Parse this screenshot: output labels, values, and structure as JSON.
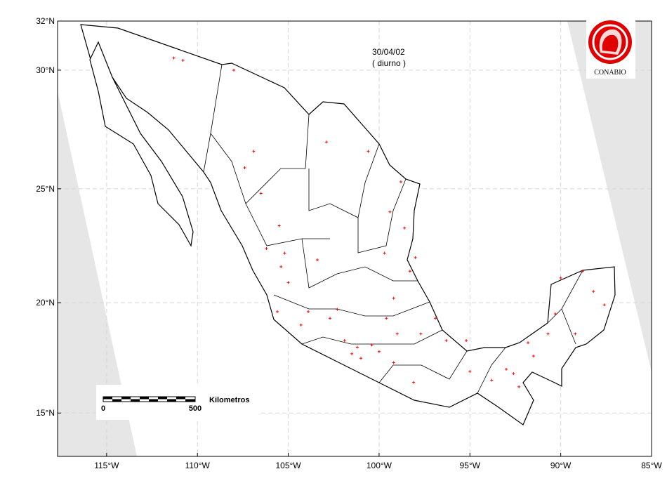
{
  "map": {
    "date": "30/04/02",
    "mode": "( diurno )",
    "logo": "CONABIO",
    "xlim": [
      -117.7,
      -85
    ],
    "ylim": [
      13,
      32
    ],
    "xticks": [
      {
        "value": -115,
        "label": "115°W"
      },
      {
        "value": -110,
        "label": "110°W"
      },
      {
        "value": -105,
        "label": "105°W"
      },
      {
        "value": -100,
        "label": "100°W"
      },
      {
        "value": -95,
        "label": "95°W"
      },
      {
        "value": -90,
        "label": "90°W"
      },
      {
        "value": -85,
        "label": "85°W"
      }
    ],
    "yticks": [
      {
        "value": 15,
        "label": "15°N"
      },
      {
        "value": 20,
        "label": "20°N"
      },
      {
        "value": 25,
        "label": "25°N"
      },
      {
        "value": 30,
        "label": "30°N"
      },
      {
        "value": 32,
        "label": "32°N"
      }
    ],
    "scale_bar": {
      "start": 0,
      "end": 500,
      "unit": "Kilometros"
    },
    "fire_color": "#ff0000",
    "fires": [
      [
        -111.3,
        30.5
      ],
      [
        -110.8,
        30.4
      ],
      [
        -108.0,
        30.0
      ],
      [
        -106.9,
        26.6
      ],
      [
        -107.4,
        25.9
      ],
      [
        -106.5,
        24.8
      ],
      [
        -105.5,
        23.4
      ],
      [
        -105.2,
        22.2
      ],
      [
        -105.0,
        20.9
      ],
      [
        -105.6,
        19.6
      ],
      [
        -103.9,
        19.6
      ],
      [
        -102.7,
        19.3
      ],
      [
        -101.9,
        18.3
      ],
      [
        -101.2,
        18.0
      ],
      [
        -101.5,
        17.7
      ],
      [
        -100.0,
        17.8
      ],
      [
        -99.2,
        17.3
      ],
      [
        -99.6,
        19.3
      ],
      [
        -99.2,
        20.2
      ],
      [
        -99.7,
        22.2
      ],
      [
        -98.6,
        23.3
      ],
      [
        -99.4,
        24.0
      ],
      [
        -98.8,
        25.3
      ],
      [
        -100.6,
        26.6
      ],
      [
        -102.9,
        27.0
      ],
      [
        -96.9,
        19.3
      ],
      [
        -97.7,
        18.6
      ],
      [
        -95.2,
        18.3
      ],
      [
        -95.0,
        16.9
      ],
      [
        -93.8,
        16.5
      ],
      [
        -93.0,
        17.0
      ],
      [
        -92.3,
        16.2
      ],
      [
        -91.5,
        17.6
      ],
      [
        -90.7,
        18.6
      ],
      [
        -90.3,
        19.5
      ],
      [
        -90.0,
        21.1
      ],
      [
        -88.8,
        21.4
      ],
      [
        -88.2,
        20.5
      ],
      [
        -87.6,
        19.9
      ],
      [
        -89.2,
        18.6
      ],
      [
        -96.3,
        18.3
      ],
      [
        -98.1,
        16.4
      ],
      [
        -102.3,
        19.7
      ],
      [
        -104.3,
        19.0
      ],
      [
        -103.4,
        21.9
      ],
      [
        -105.4,
        21.6
      ],
      [
        -106.2,
        22.4
      ],
      [
        -101.0,
        17.5
      ],
      [
        -100.4,
        18.1
      ],
      [
        -99.0,
        18.6
      ],
      [
        -98.3,
        21.4
      ],
      [
        -98.0,
        22.0
      ],
      [
        -92.6,
        16.8
      ],
      [
        -91.8,
        18.2
      ]
    ]
  }
}
